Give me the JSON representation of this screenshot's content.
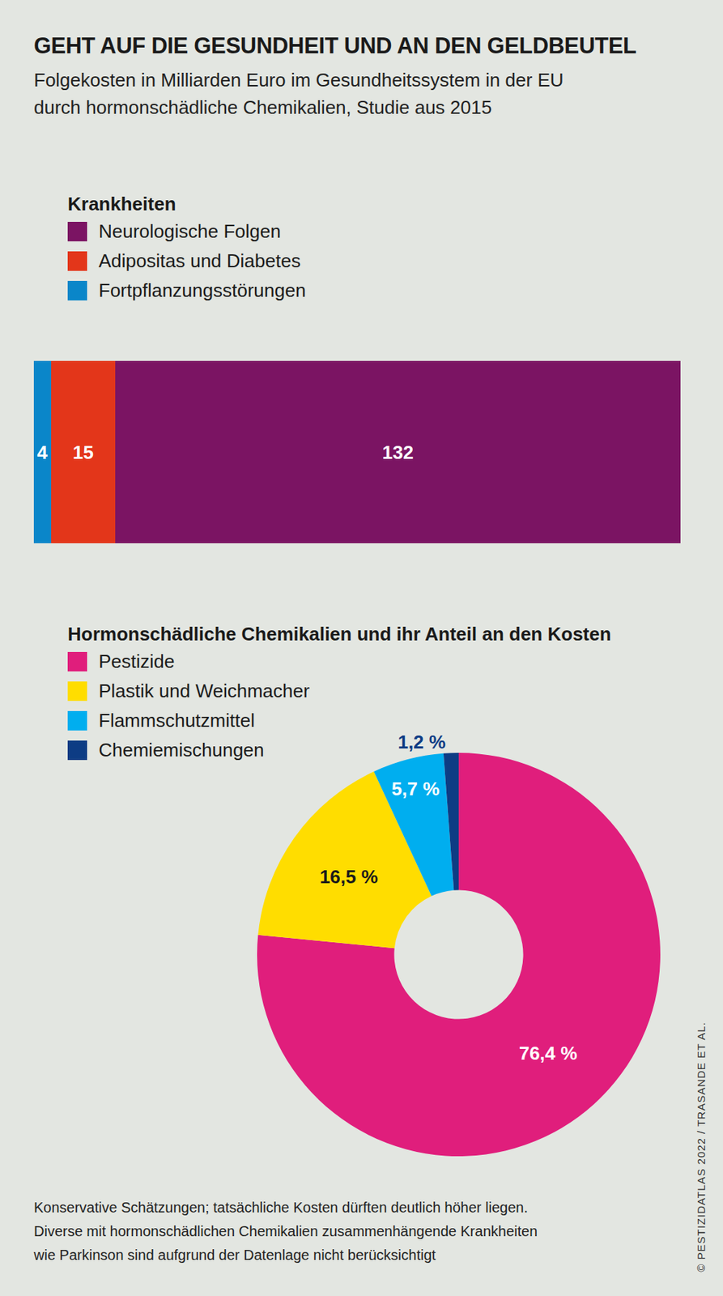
{
  "title": "GEHT AUF DIE GESUNDHEIT UND AN DEN GELDBEUTEL",
  "subtitle": [
    "Folgekosten in Milliarden Euro im Gesundheitssystem in der EU",
    "durch hormonschädliche Chemikalien, Studie aus 2015"
  ],
  "notes": [
    "Konservative Schätzungen; tatsächliche Kosten dürften deutlich höher liegen.",
    "Diverse mit hormonschädlichen Chemikalien zusammenhängende Krankheiten",
    "wie Parkinson sind aufgrund der Datenlage nicht berücksichtigt"
  ],
  "source": "© PESTIZIDATLAS 2022 / TRASANDE ET AL.",
  "chart_data": [
    {
      "type": "bar",
      "title": "Krankheiten",
      "orientation": "horizontal",
      "stacked": true,
      "data_labels": true,
      "tick_labels": false,
      "categories": [
        null
      ],
      "xlim": [
        0,
        151
      ],
      "series": [
        {
          "name": "Neurologische Folgen",
          "color": "#7b1463",
          "values": [
            132
          ]
        },
        {
          "name": "Adipositas und Diabetes",
          "color": "#e3361a",
          "values": [
            15
          ]
        },
        {
          "name": "Fortpflanzungsstörungen",
          "color": "#0a86c9",
          "values": [
            4
          ]
        }
      ]
    },
    {
      "type": "donut",
      "title": "Hormonschädliche Chemikalien und ihr Anteil an den Kosten",
      "data_labels": true,
      "categories": [
        "Pestizide",
        "Plastik und Weichmacher",
        "Flammschutzmittel",
        "Chemiemischungen"
      ],
      "values": [
        76.4,
        16.5,
        5.7,
        1.2
      ],
      "value_labels": [
        "76,4 %",
        "16,5 %",
        "5,7 %",
        "1,2 %"
      ],
      "colors": [
        "#e01e7c",
        "#ffdd00",
        "#00aeef",
        "#0d3c84"
      ]
    }
  ]
}
